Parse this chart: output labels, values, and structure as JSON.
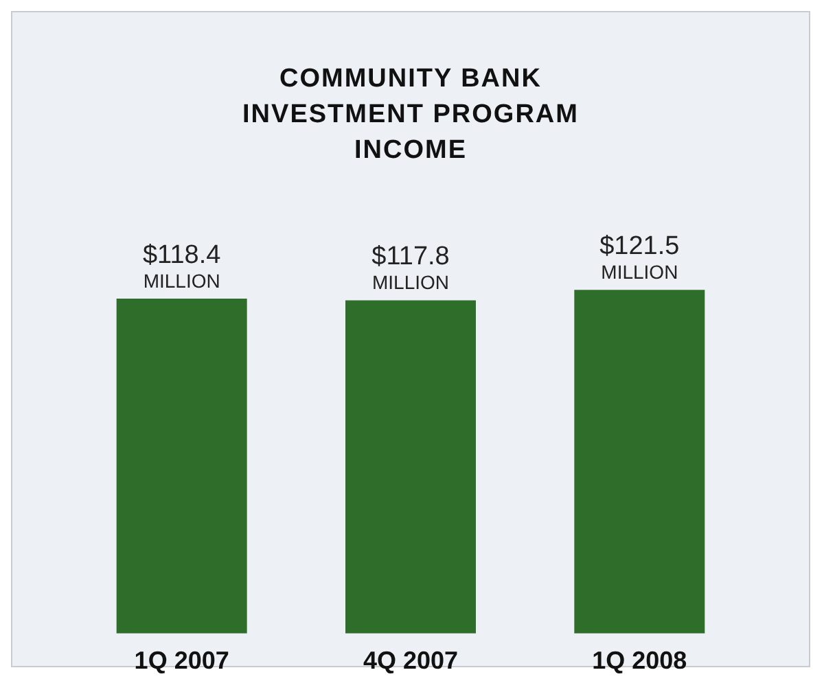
{
  "chart_data": {
    "type": "bar",
    "title": "COMMUNITY BANK INVESTMENT PROGRAM INCOME",
    "categories": [
      "1Q 2007",
      "4Q 2007",
      "1Q 2008"
    ],
    "values": [
      118.4,
      117.8,
      121.5
    ],
    "value_labels": [
      "$118.4 MILLION",
      "$117.8 MILLION",
      "$121.5 MILLION"
    ],
    "color": "#2f6e2a",
    "grid": false,
    "legend": false
  }
}
